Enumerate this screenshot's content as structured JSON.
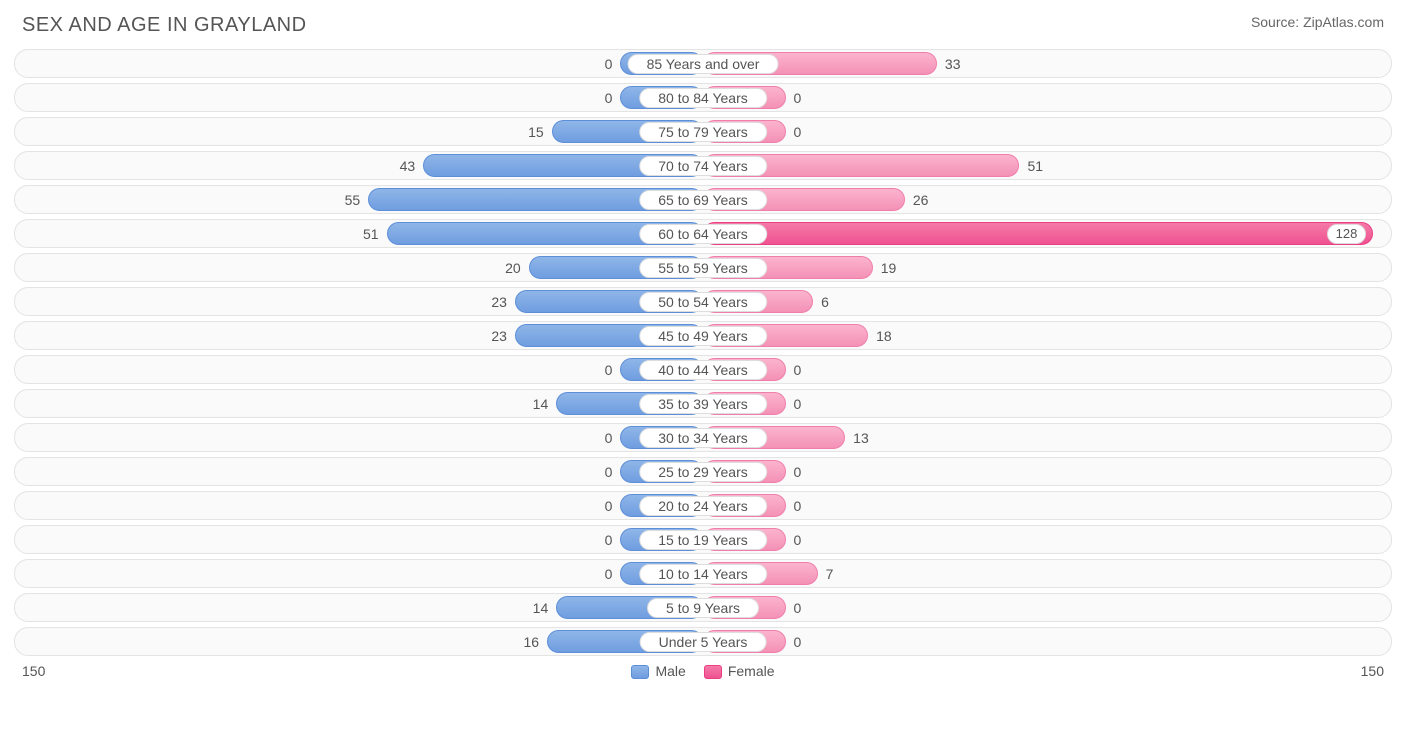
{
  "title": "SEX AND AGE IN GRAYLAND",
  "source": "Source: ZipAtlas.com",
  "chart": {
    "type": "population-pyramid",
    "axis_max": 150,
    "min_bar_pct": 12.0,
    "colors": {
      "male_fill_top": "#8fb6e8",
      "male_fill_bot": "#6f9de0",
      "male_border": "#5d8fd8",
      "female_fill_top": "#fbb4cd",
      "female_fill_bot": "#f491b5",
      "female_border": "#f07eab",
      "female_max_top": "#f57aa8",
      "female_max_bot": "#ef5291",
      "row_bg": "#fafafa",
      "row_border": "#e4e4e4",
      "pill_bg": "#ffffff",
      "pill_border": "#dddddd",
      "text": "#555555"
    },
    "legend": {
      "male": "Male",
      "female": "Female"
    },
    "axis_left": "150",
    "axis_right": "150",
    "female_max_value": 128,
    "rows": [
      {
        "label": "85 Years and over",
        "male": 0,
        "female": 33
      },
      {
        "label": "80 to 84 Years",
        "male": 0,
        "female": 0
      },
      {
        "label": "75 to 79 Years",
        "male": 15,
        "female": 0
      },
      {
        "label": "70 to 74 Years",
        "male": 43,
        "female": 51
      },
      {
        "label": "65 to 69 Years",
        "male": 55,
        "female": 26
      },
      {
        "label": "60 to 64 Years",
        "male": 51,
        "female": 128
      },
      {
        "label": "55 to 59 Years",
        "male": 20,
        "female": 19
      },
      {
        "label": "50 to 54 Years",
        "male": 23,
        "female": 6
      },
      {
        "label": "45 to 49 Years",
        "male": 23,
        "female": 18
      },
      {
        "label": "40 to 44 Years",
        "male": 0,
        "female": 0
      },
      {
        "label": "35 to 39 Years",
        "male": 14,
        "female": 0
      },
      {
        "label": "30 to 34 Years",
        "male": 0,
        "female": 13
      },
      {
        "label": "25 to 29 Years",
        "male": 0,
        "female": 0
      },
      {
        "label": "20 to 24 Years",
        "male": 0,
        "female": 0
      },
      {
        "label": "15 to 19 Years",
        "male": 0,
        "female": 0
      },
      {
        "label": "10 to 14 Years",
        "male": 0,
        "female": 7
      },
      {
        "label": "5 to 9 Years",
        "male": 14,
        "female": 0
      },
      {
        "label": "Under 5 Years",
        "male": 16,
        "female": 0
      }
    ]
  }
}
